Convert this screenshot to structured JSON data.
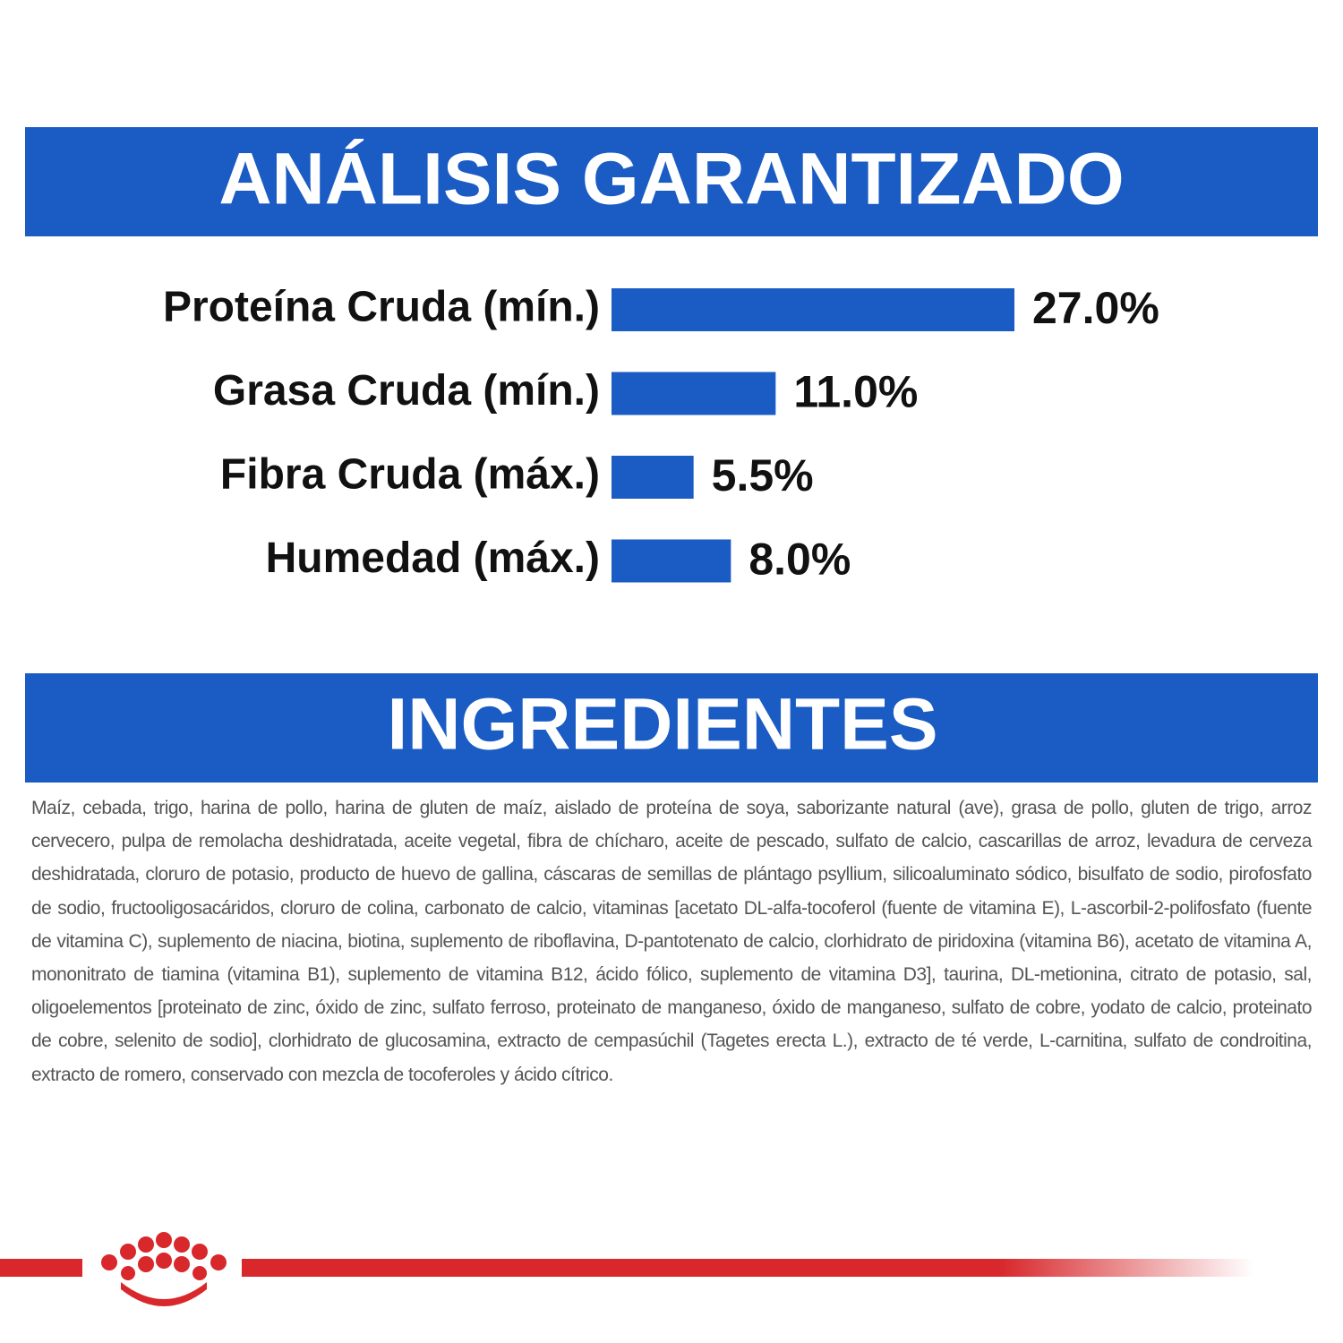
{
  "chart_data": {
    "type": "bar",
    "orientation": "horizontal",
    "title": "ANÁLISIS GARANTIZADO",
    "categories": [
      "Proteína Cruda (mín.)",
      "Grasa Cruda (mín.)",
      "Fibra Cruda (máx.)",
      "Humedad (máx.)"
    ],
    "values": [
      27.0,
      11.0,
      5.5,
      8.0
    ],
    "value_labels": [
      "27.0%",
      "11.0%",
      "5.5%",
      "8.0%"
    ],
    "color": "#1a5bc4"
  },
  "ingredients": {
    "title": "INGREDIENTES",
    "text": "Maíz, cebada, trigo, harina de pollo, harina de gluten de maíz, aislado de proteína de soya, saborizante natural (ave), grasa de pollo, gluten de trigo, arroz cervecero, pulpa de remolacha deshidratada, aceite vegetal, fibra de chícharo, aceite de pescado, sulfato de calcio, cascarillas de arroz, levadura de cerveza deshidratada, cloruro de potasio, producto de huevo de gallina, cáscaras de semillas de plántago psyllium, silicoaluminato sódico, bisulfato de sodio, pirofosfato de sodio, fructooligosacáridos, cloruro de colina, carbonato de calcio, vitaminas [acetato DL-alfa-tocoferol (fuente de vitamina E), L-ascorbil-2-polifosfato (fuente de vitamina C), suplemento de niacina, biotina, suplemento de riboflavina, D-pantotenato de calcio, clorhidrato de piridoxina (vitamina B6), acetato de vitamina A, mononitrato de tiamina (vitamina B1), suplemento de vitamina B12, ácido fólico, suplemento de vitamina D3], taurina, DL-metionina, citrato de potasio, sal, oligoelementos [proteinato de zinc, óxido de zinc, sulfato ferroso, proteinato de manganeso, óxido de manganeso, sulfato de cobre, yodato de calcio, proteinato de cobre, selenito de sodio], clorhidrato de glucosamina, extracto de cempasúchil (Tagetes erecta L.), extracto de té verde, L-carnitina, sulfato de condroitina, extracto de romero, conservado con mezcla de tocoferoles y ácido cítrico."
  }
}
